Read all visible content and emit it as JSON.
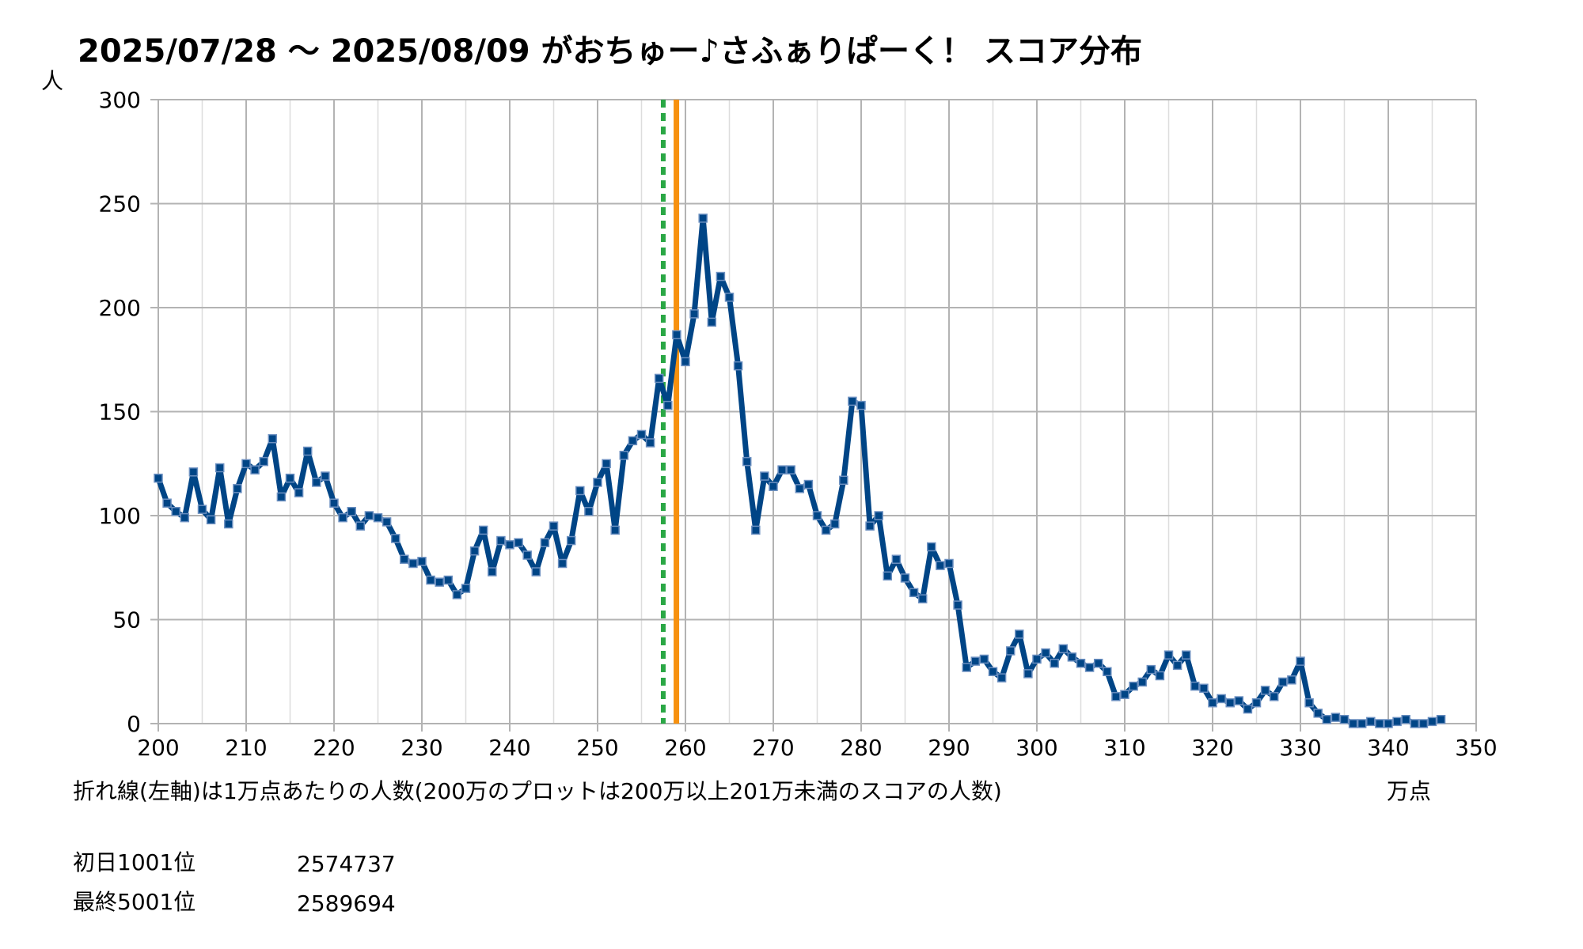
{
  "chart_data": {
    "type": "line",
    "title": "2025/07/28 〜 2025/08/09 がおちゅー♪さふぁりぱーく！ スコア分布",
    "ylabel": "人",
    "xunit": "万点",
    "caption": "折れ線(左軸)は1万点あたりの人数(200万のプロットは200万以上201万未満のスコアの人数)",
    "xlim": [
      200,
      350
    ],
    "ylim": [
      0,
      300
    ],
    "xticks": [
      200,
      210,
      220,
      230,
      240,
      250,
      260,
      270,
      280,
      290,
      300,
      310,
      320,
      330,
      340,
      350
    ],
    "yticks": [
      0,
      50,
      100,
      150,
      200,
      250,
      300
    ],
    "grid": true,
    "series": [
      {
        "color": "#004586",
        "x": [
          200,
          201,
          202,
          203,
          204,
          205,
          206,
          207,
          208,
          209,
          210,
          211,
          212,
          213,
          214,
          215,
          216,
          217,
          218,
          219,
          220,
          221,
          222,
          223,
          224,
          225,
          226,
          227,
          228,
          229,
          230,
          231,
          232,
          233,
          234,
          235,
          236,
          237,
          238,
          239,
          240,
          241,
          242,
          243,
          244,
          245,
          246,
          247,
          248,
          249,
          250,
          251,
          252,
          253,
          254,
          255,
          256,
          257,
          258,
          259,
          260,
          261,
          262,
          263,
          264,
          265,
          266,
          267,
          268,
          269,
          270,
          271,
          272,
          273,
          274,
          275,
          276,
          277,
          278,
          279,
          280,
          281,
          282,
          283,
          284,
          285,
          286,
          287,
          288,
          289,
          290,
          291,
          292,
          293,
          294,
          295,
          296,
          297,
          298,
          299,
          300,
          301,
          302,
          303,
          304,
          305,
          306,
          307,
          308,
          309,
          310,
          311,
          312,
          313,
          314,
          315,
          316,
          317,
          318,
          319,
          320,
          321,
          322,
          323,
          324,
          325,
          326,
          327,
          328,
          329,
          330,
          331,
          332,
          333,
          334,
          335,
          336,
          337,
          338,
          339,
          340,
          341,
          342,
          343,
          344,
          345,
          346
        ],
        "y": [
          118,
          106,
          102,
          99,
          121,
          103,
          98,
          123,
          96,
          113,
          125,
          122,
          126,
          137,
          109,
          118,
          111,
          131,
          116,
          119,
          106,
          99,
          102,
          95,
          100,
          99,
          97,
          89,
          79,
          77,
          78,
          69,
          68,
          69,
          62,
          65,
          83,
          93,
          73,
          88,
          86,
          87,
          81,
          73,
          87,
          95,
          77,
          88,
          112,
          102,
          116,
          125,
          93,
          129,
          136,
          139,
          135,
          166,
          153,
          187,
          174,
          197,
          243,
          193,
          215,
          205,
          172,
          126,
          93,
          119,
          114,
          122,
          122,
          113,
          115,
          100,
          93,
          96,
          117,
          155,
          153,
          95,
          100,
          71,
          79,
          70,
          63,
          60,
          85,
          76,
          77,
          57,
          27,
          30,
          31,
          25,
          22,
          35,
          43,
          24,
          31,
          34,
          29,
          36,
          32,
          29,
          27,
          29,
          25,
          13,
          14,
          18,
          20,
          26,
          23,
          33,
          28,
          33,
          18,
          17,
          10,
          12,
          10,
          11,
          7,
          10,
          16,
          13,
          20,
          21,
          30,
          10,
          5,
          2,
          3,
          2,
          0,
          0,
          1,
          0,
          0,
          1,
          2,
          0,
          0,
          1,
          2
        ]
      }
    ],
    "markers": [
      {
        "name": "初日1001位",
        "score": 2574737,
        "color": "#2aa745",
        "style": "dashed"
      },
      {
        "name": "最終5001位",
        "score": 2589694,
        "color": "#f7910f",
        "style": "solid"
      }
    ]
  }
}
